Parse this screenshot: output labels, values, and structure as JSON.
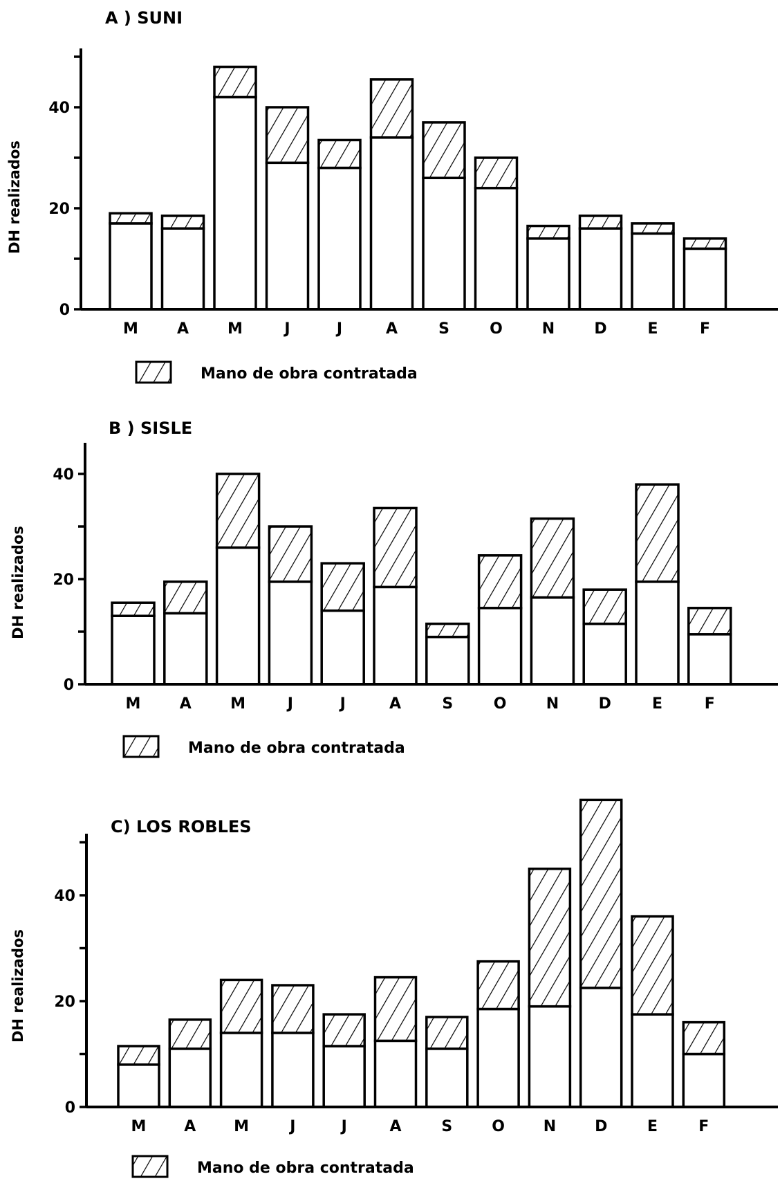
{
  "legend_label_hatch": "Mano de obra contratada",
  "colors": {
    "ink": "#000000",
    "paper": "#ffffff"
  },
  "chart_data": [
    {
      "type": "bar",
      "title": "A ) SUNI",
      "ylabel": "DH realizados",
      "ylim": [
        0,
        50
      ],
      "yticks": [
        0,
        20,
        40
      ],
      "categories": [
        "M",
        "A",
        "M",
        "J",
        "J",
        "A",
        "S",
        "O",
        "N",
        "D",
        "E",
        "F"
      ],
      "series": [
        {
          "values": [
            17,
            16,
            42,
            29,
            28,
            34,
            26,
            24,
            14,
            16,
            15,
            12
          ]
        },
        {
          "name": "Mano de obra contratada",
          "pattern": "hatch",
          "values": [
            2,
            2.5,
            6,
            11,
            5.5,
            11.5,
            11,
            6,
            2.5,
            2.5,
            2,
            2
          ]
        }
      ],
      "legend": "Mano de obra contratada",
      "grid": false
    },
    {
      "type": "bar",
      "title": "B ) SISLE",
      "ylabel": "DH realizados",
      "ylim": [
        0,
        45
      ],
      "yticks": [
        0,
        20,
        40
      ],
      "categories": [
        "M",
        "A",
        "M",
        "J",
        "J",
        "A",
        "S",
        "O",
        "N",
        "D",
        "E",
        "F"
      ],
      "series": [
        {
          "values": [
            13,
            13.5,
            26,
            19.5,
            14,
            18.5,
            9,
            14.5,
            16.5,
            11.5,
            19.5,
            9.5
          ]
        },
        {
          "name": "Mano de obra contratada",
          "pattern": "hatch",
          "values": [
            2.5,
            6,
            14,
            10.5,
            9,
            15,
            2.5,
            10,
            15,
            6.5,
            18.5,
            5
          ]
        }
      ],
      "legend": "Mano de obra contratada",
      "grid": false
    },
    {
      "type": "bar",
      "title": "C) LOS ROBLES",
      "ylabel": "DH realizados",
      "ylim": [
        0,
        55
      ],
      "yticks": [
        0,
        20,
        40
      ],
      "categories": [
        "M",
        "A",
        "M",
        "J",
        "J",
        "A",
        "S",
        "O",
        "N",
        "D",
        "E",
        "F"
      ],
      "series": [
        {
          "values": [
            8,
            11,
            14,
            14,
            11.5,
            12.5,
            11,
            18.5,
            19,
            22.5,
            17.5,
            10
          ]
        },
        {
          "name": "Mano de obra contratada",
          "pattern": "hatch",
          "values": [
            3.5,
            5.5,
            10,
            9,
            6,
            12,
            6,
            9,
            26,
            35.5,
            18.5,
            6
          ]
        }
      ],
      "legend": "Mano de obra contratada",
      "grid": false
    }
  ]
}
